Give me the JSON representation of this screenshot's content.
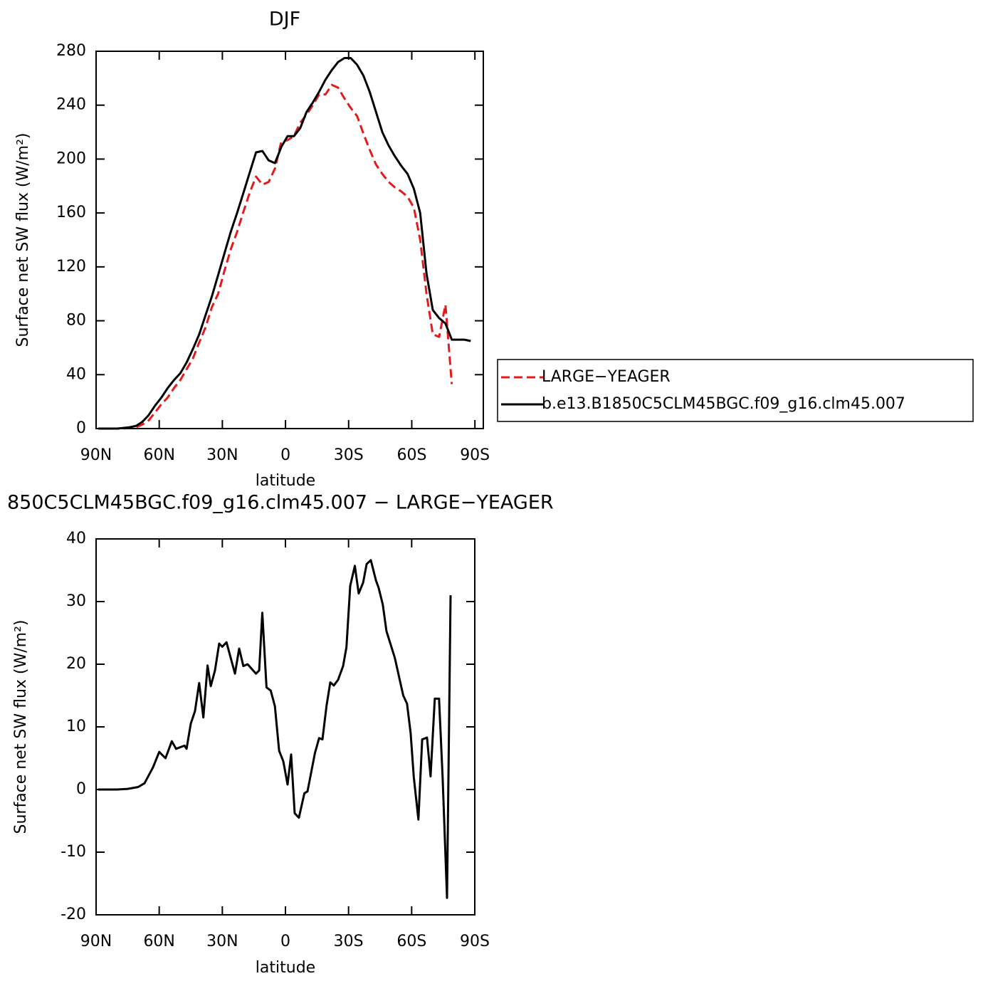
{
  "chart_data": [
    {
      "type": "line",
      "title": "DJF",
      "x_label": "latitude",
      "y_label": "Surface net SW flux (W/m²)",
      "x": [
        89,
        86,
        83,
        80,
        77,
        74,
        71,
        68,
        65,
        62,
        59,
        56,
        53,
        50,
        47,
        44,
        41,
        38,
        35,
        32,
        29,
        26,
        23,
        20,
        17,
        14,
        11,
        8,
        5,
        2,
        -1,
        -4,
        -7,
        -10,
        -13,
        -16,
        -19,
        -22,
        -25,
        -28,
        -31,
        -34,
        -37,
        -40,
        -43,
        -46,
        -49,
        -52,
        -55,
        -58,
        -61,
        -64,
        -67,
        -70,
        -73,
        -76,
        -79,
        -82,
        -85,
        -88
      ],
      "series": [
        {
          "name": "LARGE−YEAGER",
          "color": "#e41a1c",
          "dashed": true,
          "values": [
            0,
            0,
            0,
            0,
            0,
            0.5,
            1,
            3,
            6,
            12,
            18,
            23,
            30,
            36,
            44,
            52,
            64,
            75,
            90,
            100,
            117,
            133,
            146,
            161,
            175,
            187,
            181,
            183,
            193,
            213,
            214,
            217,
            227,
            233,
            240,
            248,
            248,
            255,
            253,
            245,
            238,
            232,
            219,
            207,
            196,
            189,
            183,
            179,
            176,
            172,
            164,
            140,
            100,
            70,
            68,
            92,
            33,
            null,
            null,
            null
          ]
        },
        {
          "name": "b.e13.B1850C5CLM45BGC.f09_g16.clm45.007",
          "color": "#000000",
          "dashed": false,
          "values": [
            0,
            0,
            0,
            0,
            0.5,
            1,
            2,
            5,
            10,
            17,
            23,
            30,
            36,
            41,
            49,
            59,
            70,
            84,
            98,
            114,
            130,
            146,
            160,
            175,
            190,
            205,
            206,
            199,
            197,
            209,
            217,
            217,
            223,
            235,
            242,
            250,
            259,
            266,
            272,
            275,
            275,
            270,
            262,
            250,
            235,
            220,
            210,
            202,
            195,
            189,
            178,
            160,
            115,
            88,
            82,
            78,
            66,
            66,
            66,
            65
          ]
        }
      ],
      "xlim": [
        90,
        -94
      ],
      "ylim": [
        0,
        280
      ],
      "xticks": [
        {
          "value": 90,
          "label": "90N"
        },
        {
          "value": 60,
          "label": "60N"
        },
        {
          "value": 30,
          "label": "30N"
        },
        0,
        {
          "value": -30,
          "label": "30S"
        },
        {
          "value": -60,
          "label": "60S"
        },
        {
          "value": -90,
          "label": "90S"
        }
      ],
      "yticks": [
        0,
        40,
        80,
        120,
        160,
        200,
        240,
        280
      ],
      "legend": "right"
    },
    {
      "type": "line",
      "title": "850C5CLM45BGC.f09_g16.clm45.007 − LARGE−YEAGER",
      "x_label": "latitude",
      "y_label": "Surface net SW flux (W/m²)",
      "x": [
        89,
        80,
        75,
        70,
        67,
        63,
        60,
        57,
        54,
        52,
        48,
        47,
        45,
        43,
        41,
        39,
        37,
        35.5,
        33.5,
        31.5,
        30,
        28,
        24,
        22,
        20,
        18,
        14,
        12.5,
        11,
        9,
        7,
        5,
        3,
        1,
        -1,
        -2.7,
        -4.4,
        -6.4,
        -9,
        -10.5,
        -14,
        -16,
        -17.6,
        -19.6,
        -21.3,
        -23,
        -25,
        -27.4,
        -29,
        -30.8,
        -33,
        -34.8,
        -36.9,
        -38.6,
        -40.6,
        -43,
        -44.3,
        -46.3,
        -48,
        -52,
        -56,
        -57.8,
        -59.5,
        -61,
        -63.2,
        -65,
        -67.3,
        -69,
        -71,
        -73,
        -74.7,
        -76.8,
        -78.5
      ],
      "values": [
        0,
        0,
        0.1,
        0.4,
        1,
        3.5,
        6,
        5,
        7.7,
        6.5,
        7,
        6.5,
        10.5,
        12.5,
        17,
        11.5,
        19.8,
        16.5,
        19,
        23.3,
        22.8,
        23.5,
        18.5,
        22.5,
        19.7,
        20,
        18.5,
        19,
        28.2,
        16.3,
        15.8,
        13.3,
        6.2,
        4.5,
        0.8,
        5.6,
        -3.8,
        -4.5,
        -0.6,
        -0.3,
        5.8,
        8.2,
        8,
        13.5,
        17.1,
        16.6,
        17.5,
        19.7,
        22.7,
        32.5,
        35.7,
        31.3,
        33,
        36,
        36.6,
        33.4,
        32.2,
        29.5,
        25.3,
        21,
        15,
        13.7,
        9,
        2,
        -4.8,
        8,
        8.3,
        2.1,
        14.5,
        14.5,
        2,
        -17.3,
        31
      ],
      "color": "#000000",
      "xlim": [
        90,
        -90
      ],
      "ylim": [
        -20,
        40
      ],
      "xticks": [
        {
          "value": 90,
          "label": "90N"
        },
        {
          "value": 60,
          "label": "60N"
        },
        {
          "value": 30,
          "label": "30N"
        },
        0,
        {
          "value": -30,
          "label": "30S"
        },
        {
          "value": -60,
          "label": "60S"
        },
        {
          "value": -90,
          "label": "90S"
        }
      ],
      "yticks": [
        -20,
        -10,
        0,
        10,
        20,
        30,
        40
      ]
    }
  ]
}
